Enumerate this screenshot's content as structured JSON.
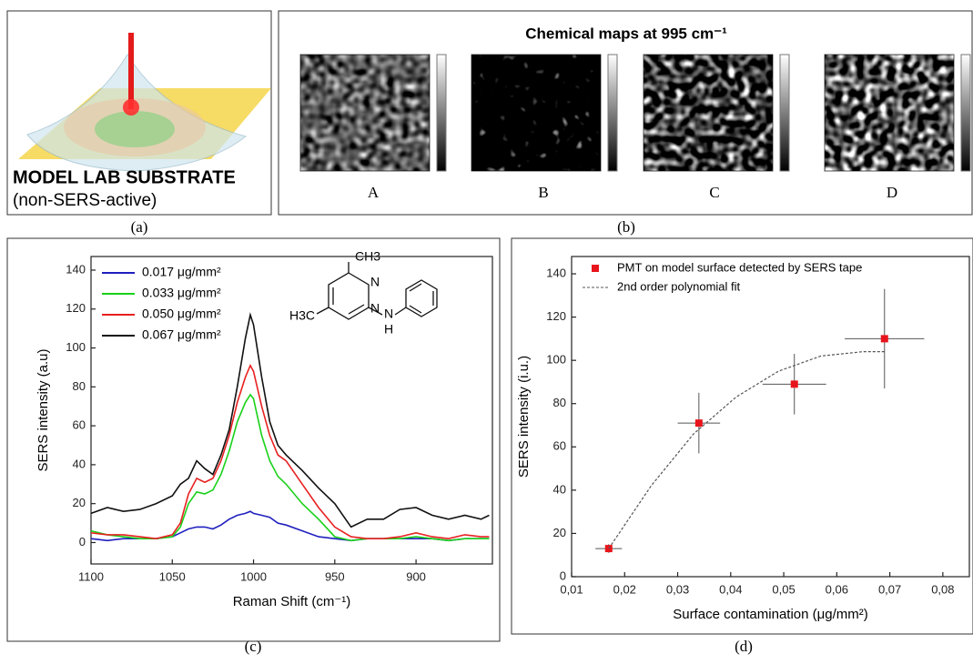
{
  "panel_a": {
    "title": "MODEL LAB SUBSTRATE",
    "subtitle": "(non-SERS-active)",
    "caption": "(a)"
  },
  "panel_b": {
    "title": "Chemical maps at 995 cm⁻¹",
    "maps": [
      "A",
      "B",
      "C",
      "D"
    ],
    "caption": "(b)"
  },
  "chart_data": [
    {
      "type": "line",
      "caption": "(c)",
      "xlabel": "Raman Shift (cm⁻¹)",
      "ylabel": "SERS intensity (a.u)",
      "molecule_labels": [
        "CH3",
        "N",
        "N",
        "H3C",
        "N",
        "H"
      ],
      "x": [
        1100,
        1090,
        1080,
        1070,
        1060,
        1050,
        1045,
        1040,
        1035,
        1030,
        1025,
        1020,
        1015,
        1010,
        1005,
        1002,
        1000,
        995,
        990,
        985,
        980,
        970,
        960,
        950,
        940,
        930,
        920,
        910,
        900,
        890,
        880,
        870,
        860,
        855
      ],
      "xlim": [
        1100,
        853
      ],
      "xticks": [
        1100,
        1050,
        1000,
        950,
        900
      ],
      "ylim": [
        -11,
        147
      ],
      "yticks": [
        0,
        20,
        40,
        60,
        80,
        100,
        120,
        140
      ],
      "series": [
        {
          "name": "0.017 μg/mm²",
          "color": "#1f1fbf",
          "values": [
            2,
            1,
            2,
            2,
            2,
            3,
            5,
            7,
            8,
            8,
            7,
            9,
            12,
            14,
            15,
            16,
            15,
            14,
            13,
            10,
            9,
            6,
            3,
            2,
            1,
            2,
            2,
            2,
            2,
            2,
            1,
            2,
            2,
            2
          ]
        },
        {
          "name": "0.033 μg/mm²",
          "color": "#19d119",
          "values": [
            6,
            4,
            3,
            2,
            2,
            3,
            8,
            20,
            26,
            25,
            27,
            35,
            47,
            62,
            72,
            76,
            74,
            55,
            42,
            34,
            30,
            20,
            12,
            3,
            1,
            2,
            2,
            2,
            3,
            2,
            1,
            2,
            2,
            2
          ]
        },
        {
          "name": "0.050 μg/mm²",
          "color": "#e82020",
          "values": [
            5,
            4,
            4,
            3,
            2,
            4,
            10,
            25,
            33,
            31,
            33,
            42,
            55,
            72,
            85,
            91,
            88,
            70,
            55,
            45,
            42,
            30,
            18,
            8,
            3,
            2,
            2,
            3,
            5,
            3,
            2,
            4,
            3,
            3
          ]
        },
        {
          "name": "0.067 μg/mm²",
          "color": "#111111",
          "values": [
            15,
            18,
            16,
            17,
            20,
            24,
            30,
            33,
            42,
            38,
            35,
            45,
            58,
            80,
            105,
            117,
            112,
            85,
            62,
            50,
            45,
            37,
            28,
            20,
            8,
            12,
            12,
            17,
            18,
            14,
            12,
            14,
            12,
            14
          ]
        }
      ]
    },
    {
      "type": "scatter",
      "caption": "(d)",
      "xlabel": "Surface contamination (μg/mm²)",
      "ylabel": "SERS intensity (i.u.)",
      "xlim": [
        0.01,
        0.085
      ],
      "ylim": [
        0,
        148
      ],
      "xticks": [
        {
          "value": 0.01,
          "label": "0,01"
        },
        {
          "value": 0.02,
          "label": "0,02"
        },
        {
          "value": 0.03,
          "label": "0,03"
        },
        {
          "value": 0.04,
          "label": "0,04"
        },
        {
          "value": 0.05,
          "label": "0,05"
        },
        {
          "value": 0.06,
          "label": "0,06"
        },
        {
          "value": 0.07,
          "label": "0,07"
        },
        {
          "value": 0.08,
          "label": "0,08"
        }
      ],
      "yticks": [
        0,
        20,
        40,
        60,
        80,
        100,
        120,
        140
      ],
      "series": [
        {
          "name": "PMT on model surface detected by SERS tape",
          "color": "#e8141c",
          "x": [
            0.017,
            0.034,
            0.052,
            0.069
          ],
          "values": [
            13,
            71,
            89,
            110
          ],
          "yerr": [
            2,
            14,
            14,
            23
          ],
          "xerr": [
            0.0025,
            0.004,
            0.006,
            0.0075
          ]
        },
        {
          "name": "2nd order polynomial fit",
          "color": "#555555",
          "x": [
            0.017,
            0.025,
            0.033,
            0.041,
            0.049,
            0.057,
            0.065,
            0.069
          ],
          "values": [
            13,
            42,
            66,
            83,
            95,
            102,
            104,
            104
          ]
        }
      ]
    }
  ]
}
